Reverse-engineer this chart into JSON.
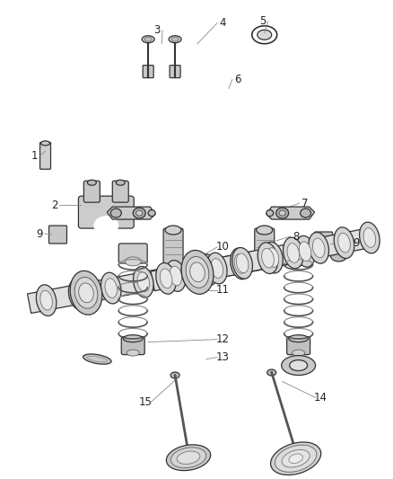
{
  "background_color": "#ffffff",
  "fig_width": 4.38,
  "fig_height": 5.33,
  "dpi": 100,
  "line_color": "#333333",
  "cam_color": "#888888",
  "cam_fill": "#e8e8e8",
  "lobe_fill": "#d0d0d0",
  "journal_fill": "#c8c8c8",
  "part_fill": "#d8d8d8",
  "spring_color": "#555555",
  "label_fontsize": 8.5,
  "label_color": "#222222",
  "leader_color": "#888888"
}
